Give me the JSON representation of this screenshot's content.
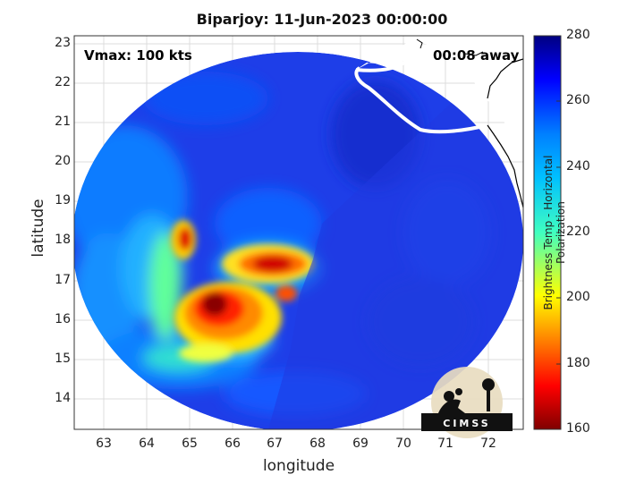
{
  "title": "Biparjoy: 11-Jun-2023 00:00:00",
  "annotations": {
    "vmax": "Vmax: 100 kts",
    "time_away": "00:08 away"
  },
  "x_axis": {
    "label": "longitude",
    "ticks": [
      "63",
      "64",
      "65",
      "66",
      "67",
      "68",
      "69",
      "70",
      "71",
      "72"
    ],
    "range": [
      62.35,
      72.85
    ]
  },
  "y_axis": {
    "label": "latitude",
    "ticks": [
      "14",
      "15",
      "16",
      "17",
      "18",
      "19",
      "20",
      "21",
      "22",
      "23"
    ],
    "range": [
      13.2,
      23.3
    ]
  },
  "colorbar": {
    "label": "Brightness Temp - Horizontal Polarization",
    "ticks": [
      "160",
      "180",
      "200",
      "220",
      "240",
      "260",
      "280"
    ],
    "range": [
      160,
      280
    ],
    "colormap": "jet"
  },
  "logo": {
    "text": "CIMSS"
  },
  "colors": {
    "coast": "#ffffff",
    "land_outline": "#000000",
    "grid": "#d9d9d9",
    "swath_edge": "#1e40e6"
  }
}
